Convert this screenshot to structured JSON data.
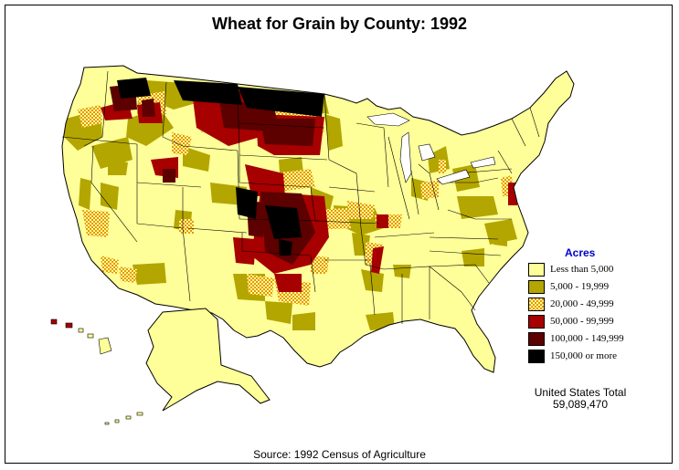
{
  "title": "Wheat for Grain by County:  1992",
  "legend": {
    "title": "Acres",
    "items": [
      {
        "label": "Less than 5,000",
        "color": "#ffff99"
      },
      {
        "label": "5,000 - 19,999",
        "color": "#b3a600"
      },
      {
        "label": "20,000 - 49,999",
        "color": "#e69900",
        "pattern": "checker"
      },
      {
        "label": "50,000 - 99,999",
        "color": "#a60000"
      },
      {
        "label": "100,000 - 149,999",
        "color": "#5c0000"
      },
      {
        "label": "150,000 or more",
        "color": "#000000"
      }
    ]
  },
  "total": {
    "label": "United States Total",
    "value": "59,089,470"
  },
  "source": "Source:  1992 Census of Agriculture"
}
